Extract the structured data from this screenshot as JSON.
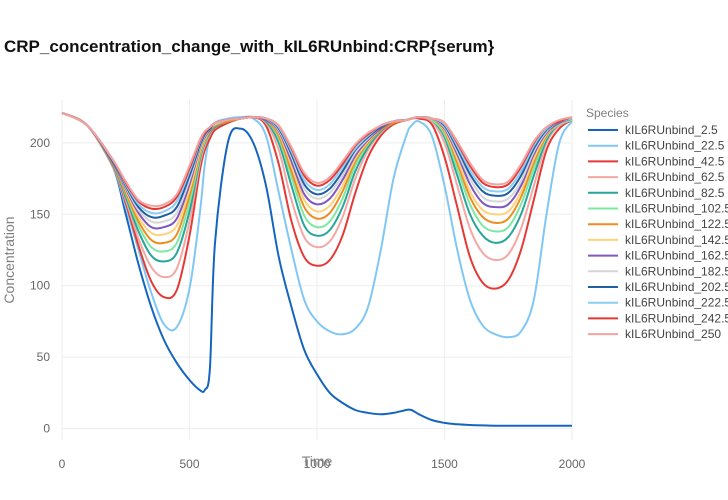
{
  "chart_data": {
    "type": "line",
    "title": "CRP_concentration_change_with_kIL6RUnbind:CRP{serum}",
    "xlabel": "Time",
    "ylabel": "Concentration",
    "xlim": [
      0,
      2000
    ],
    "ylim": [
      -8,
      230
    ],
    "xticks": [
      0,
      500,
      1000,
      1500,
      2000
    ],
    "yticks": [
      0,
      50,
      100,
      150,
      200
    ],
    "grid": true,
    "legend_title": "Species",
    "legend_position": "right",
    "x": [
      0,
      100,
      200,
      250,
      300,
      350,
      400,
      450,
      500,
      540,
      560,
      580,
      600,
      650,
      700,
      750,
      800,
      850,
      900,
      950,
      1000,
      1050,
      1100,
      1150,
      1200,
      1250,
      1300,
      1350,
      1370,
      1400,
      1450,
      1500,
      1550,
      1600,
      1650,
      1700,
      1750,
      1800,
      1850,
      1900,
      1950,
      2000
    ],
    "series": [
      {
        "name": "kIL6RUnbind_2.5",
        "color": "#1565c0",
        "values": [
          221,
          212,
          183,
          150,
          115,
          85,
          62,
          46,
          34,
          27,
          27,
          42,
          130,
          200,
          210,
          200,
          170,
          120,
          85,
          55,
          38,
          25,
          18,
          13,
          11,
          10,
          11,
          13,
          13,
          10,
          6,
          4,
          3,
          2.5,
          2.2,
          2,
          2,
          2,
          2,
          2,
          2,
          2
        ]
      },
      {
        "name": "kIL6RUnbind_22.5",
        "color": "#81c7f5",
        "values": [
          221,
          212,
          183,
          155,
          125,
          95,
          73,
          71,
          98,
          150,
          185,
          205,
          214,
          217,
          218,
          217,
          205,
          165,
          125,
          90,
          75,
          68,
          66,
          70,
          85,
          125,
          175,
          205,
          212,
          215,
          205,
          170,
          125,
          90,
          72,
          66,
          64,
          68,
          90,
          150,
          200,
          215
        ]
      },
      {
        "name": "kIL6RUnbind_42.5",
        "color": "#e53935",
        "values": [
          221,
          212,
          183,
          158,
          128,
          103,
          92,
          97,
          135,
          180,
          195,
          203,
          209,
          214,
          217,
          218,
          212,
          185,
          145,
          120,
          114,
          118,
          135,
          165,
          190,
          205,
          213,
          216,
          217,
          217,
          213,
          190,
          155,
          120,
          102,
          98,
          104,
          125,
          160,
          195,
          210,
          216
        ]
      },
      {
        "name": "kIL6RUnbind_62.5",
        "color": "#f4a7a3",
        "values": [
          221,
          212,
          183,
          160,
          133,
          113,
          106,
          112,
          145,
          185,
          198,
          206,
          211,
          215,
          217,
          218,
          214,
          195,
          160,
          134,
          127,
          131,
          148,
          175,
          195,
          207,
          214,
          216,
          217,
          218,
          215,
          200,
          170,
          140,
          123,
          118,
          122,
          140,
          170,
          200,
          212,
          216
        ]
      },
      {
        "name": "kIL6RUnbind_82.5",
        "color": "#26a69a",
        "values": [
          221,
          212,
          184,
          162,
          138,
          121,
          117,
          123,
          152,
          188,
          200,
          207,
          211,
          215,
          217,
          218,
          215,
          200,
          170,
          142,
          135,
          139,
          155,
          180,
          197,
          208,
          214,
          216,
          217,
          218,
          216,
          204,
          177,
          150,
          135,
          130,
          134,
          150,
          177,
          202,
          213,
          216
        ]
      },
      {
        "name": "kIL6RUnbind_102.5",
        "color": "#7ee8a2",
        "values": [
          221,
          212,
          185,
          164,
          142,
          127,
          124,
          130,
          158,
          190,
          201,
          208,
          212,
          215,
          217,
          218,
          216,
          203,
          176,
          149,
          141,
          145,
          161,
          184,
          199,
          209,
          214,
          216,
          217,
          218,
          216,
          206,
          182,
          157,
          142,
          138,
          141,
          157,
          182,
          204,
          213,
          216
        ]
      },
      {
        "name": "kIL6RUnbind_122.5",
        "color": "#ef8c1f",
        "values": [
          221,
          212,
          185,
          165,
          145,
          132,
          130,
          136,
          163,
          192,
          202,
          208,
          212,
          215,
          217,
          218,
          216,
          205,
          180,
          155,
          147,
          151,
          166,
          187,
          200,
          209,
          214,
          216,
          217,
          218,
          217,
          208,
          186,
          162,
          148,
          144,
          147,
          162,
          186,
          205,
          214,
          217
        ]
      },
      {
        "name": "kIL6RUnbind_142.5",
        "color": "#ffd27a",
        "values": [
          221,
          212,
          186,
          167,
          148,
          137,
          136,
          142,
          167,
          194,
          203,
          209,
          213,
          216,
          217,
          218,
          216,
          207,
          184,
          160,
          152,
          156,
          170,
          189,
          201,
          210,
          215,
          216,
          217,
          218,
          217,
          209,
          189,
          166,
          153,
          150,
          152,
          166,
          189,
          206,
          214,
          217
        ]
      },
      {
        "name": "kIL6RUnbind_162.5",
        "color": "#7e57c2",
        "values": [
          221,
          212,
          186,
          168,
          151,
          141,
          141,
          147,
          171,
          196,
          204,
          209,
          213,
          216,
          217,
          218,
          216,
          208,
          187,
          164,
          157,
          161,
          174,
          191,
          202,
          210,
          215,
          216,
          217,
          218,
          217,
          210,
          192,
          171,
          158,
          155,
          157,
          170,
          192,
          207,
          214,
          217
        ]
      },
      {
        "name": "kIL6RUnbind_182.5",
        "color": "#d6d6d6",
        "values": [
          221,
          212,
          187,
          169,
          153,
          145,
          145,
          151,
          174,
          197,
          205,
          210,
          213,
          216,
          217,
          218,
          217,
          209,
          190,
          168,
          161,
          165,
          177,
          193,
          203,
          211,
          215,
          216,
          217,
          218,
          217,
          211,
          194,
          175,
          162,
          159,
          161,
          173,
          194,
          208,
          215,
          217
        ]
      },
      {
        "name": "kIL6RUnbind_202.5",
        "color": "#1f5fa3",
        "values": [
          221,
          212,
          187,
          170,
          155,
          148,
          149,
          155,
          177,
          198,
          206,
          210,
          214,
          216,
          217,
          218,
          217,
          210,
          192,
          171,
          164,
          168,
          180,
          195,
          204,
          211,
          215,
          216,
          217,
          218,
          217,
          212,
          196,
          178,
          166,
          163,
          165,
          177,
          196,
          209,
          215,
          217
        ]
      },
      {
        "name": "kIL6RUnbind_222.5",
        "color": "#8ccdf5",
        "values": [
          221,
          212,
          188,
          171,
          157,
          151,
          152,
          159,
          180,
          200,
          207,
          211,
          214,
          216,
          217,
          218,
          217,
          211,
          194,
          174,
          167,
          171,
          183,
          196,
          205,
          212,
          215,
          216,
          217,
          218,
          217,
          213,
          198,
          181,
          169,
          166,
          168,
          180,
          198,
          210,
          215,
          217
        ]
      },
      {
        "name": "kIL6RUnbind_242.5",
        "color": "#e53935",
        "values": [
          221,
          212,
          188,
          172,
          159,
          154,
          155,
          162,
          182,
          201,
          207,
          211,
          214,
          216,
          217,
          218,
          217,
          212,
          196,
          177,
          170,
          174,
          185,
          198,
          206,
          212,
          215,
          216,
          217,
          218,
          217,
          214,
          200,
          184,
          172,
          169,
          171,
          183,
          200,
          211,
          215,
          218
        ]
      },
      {
        "name": "kIL6RUnbind_250",
        "color": "#f4a3a0",
        "values": [
          221,
          212,
          188,
          173,
          160,
          156,
          157,
          164,
          184,
          202,
          208,
          211,
          214,
          216,
          217,
          218,
          217,
          212,
          197,
          179,
          172,
          176,
          187,
          199,
          207,
          212,
          215,
          216,
          217,
          218,
          217,
          214,
          201,
          186,
          174,
          171,
          173,
          185,
          201,
          211,
          216,
          218
        ]
      }
    ]
  }
}
